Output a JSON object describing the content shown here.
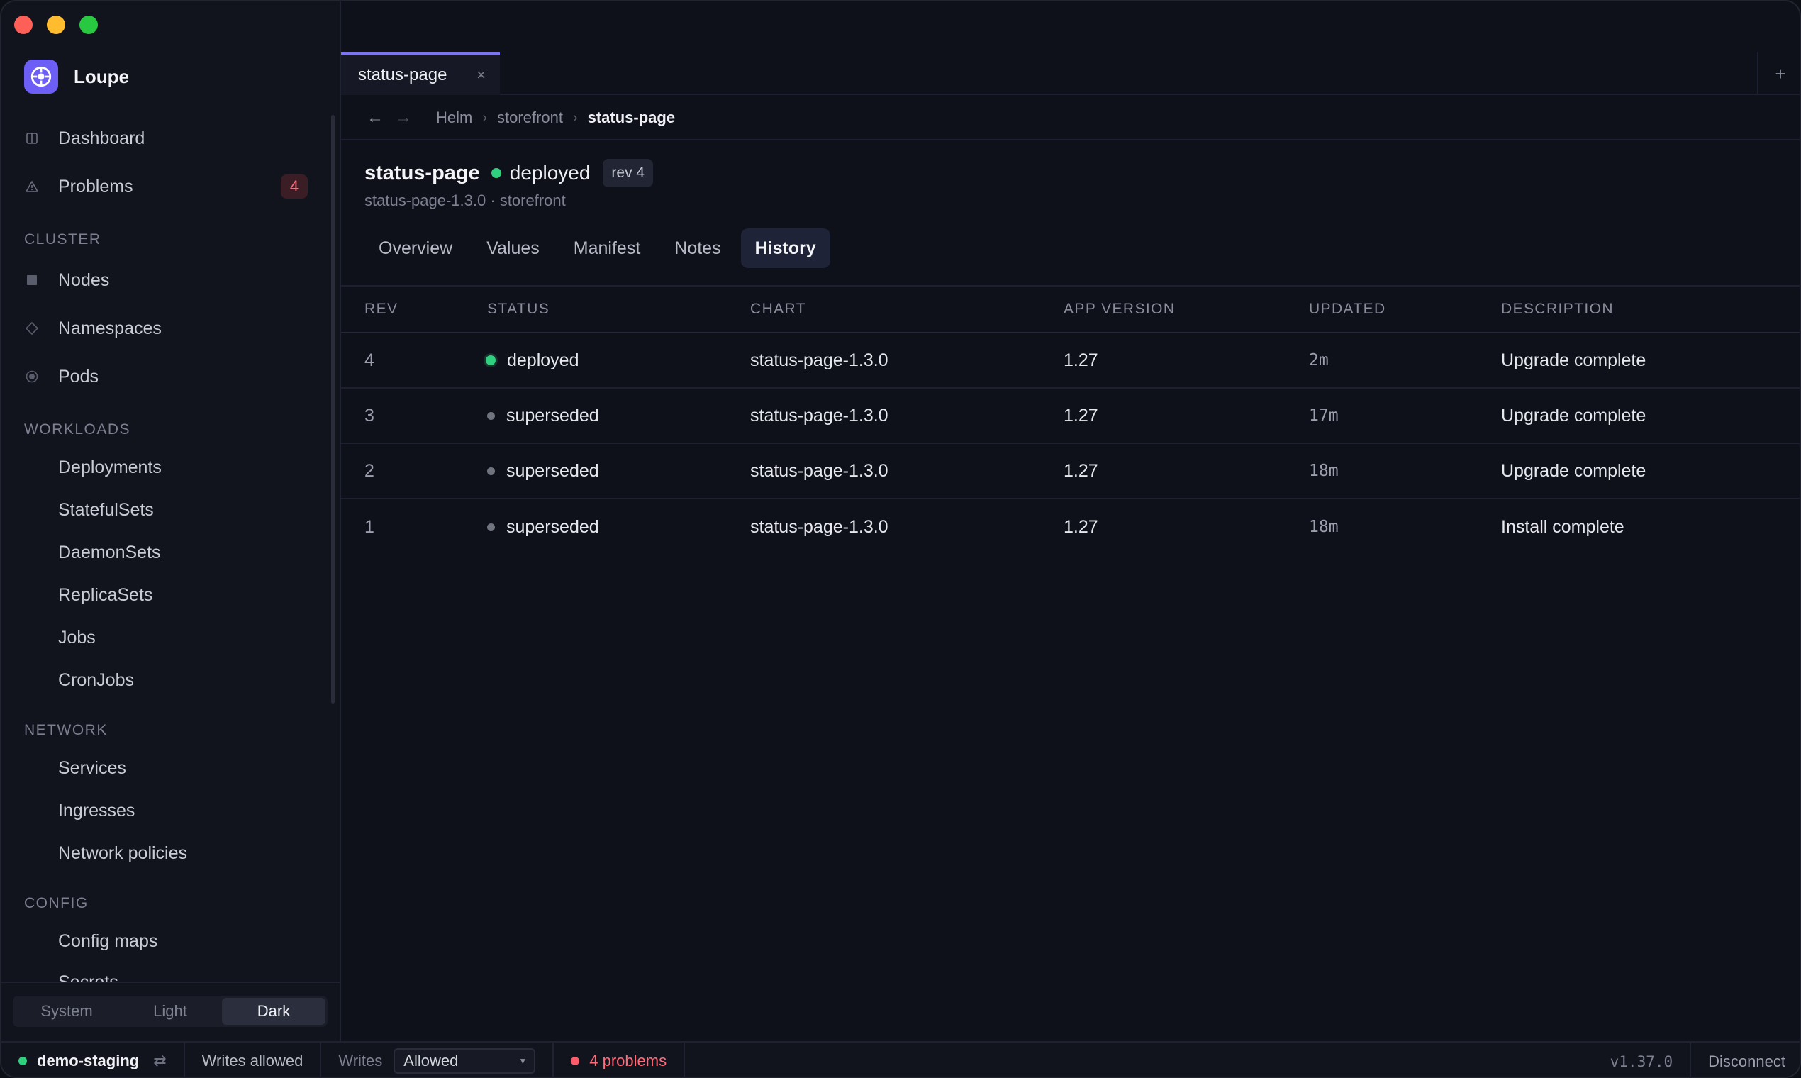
{
  "app": {
    "name": "Loupe"
  },
  "sidebar": {
    "top_items": [
      {
        "label": "Dashboard",
        "icon": "dashboard-icon"
      },
      {
        "label": "Problems",
        "icon": "warning-icon",
        "badge": "4"
      }
    ],
    "sections": [
      {
        "title": "CLUSTER",
        "items": [
          {
            "label": "Nodes"
          },
          {
            "label": "Namespaces"
          },
          {
            "label": "Pods"
          }
        ]
      },
      {
        "title": "WORKLOADS",
        "items": [
          {
            "label": "Deployments"
          },
          {
            "label": "StatefulSets"
          },
          {
            "label": "DaemonSets"
          },
          {
            "label": "ReplicaSets"
          },
          {
            "label": "Jobs"
          },
          {
            "label": "CronJobs"
          }
        ]
      },
      {
        "title": "NETWORK",
        "items": [
          {
            "label": "Services"
          },
          {
            "label": "Ingresses"
          },
          {
            "label": "Network policies"
          }
        ]
      },
      {
        "title": "CONFIG",
        "items": [
          {
            "label": "Config maps"
          },
          {
            "label": "Secrets"
          }
        ]
      }
    ],
    "theme": {
      "options": [
        "System",
        "Light",
        "Dark"
      ],
      "selected": "Dark"
    }
  },
  "tabs": [
    {
      "label": "status-page",
      "close": "×"
    }
  ],
  "new_tab": "+",
  "breadcrumb": {
    "back": "←",
    "forward": "→",
    "items": [
      "Helm",
      "storefront",
      "status-page"
    ]
  },
  "release": {
    "name": "status-page",
    "status": "deployed",
    "rev_badge": "rev 4",
    "subtitle": "status-page-1.3.0 · storefront"
  },
  "subtabs": [
    "Overview",
    "Values",
    "Manifest",
    "Notes",
    "History"
  ],
  "active_subtab": "History",
  "table": {
    "headers": [
      "REV",
      "STATUS",
      "CHART",
      "APP VERSION",
      "UPDATED",
      "DESCRIPTION"
    ],
    "rows": [
      {
        "rev": "4",
        "status": "deployed",
        "chart": "status-page-1.3.0",
        "app_version": "1.27",
        "updated": "2m",
        "description": "Upgrade complete"
      },
      {
        "rev": "3",
        "status": "superseded",
        "chart": "status-page-1.3.0",
        "app_version": "1.27",
        "updated": "17m",
        "description": "Upgrade complete"
      },
      {
        "rev": "2",
        "status": "superseded",
        "chart": "status-page-1.3.0",
        "app_version": "1.27",
        "updated": "18m",
        "description": "Upgrade complete"
      },
      {
        "rev": "1",
        "status": "superseded",
        "chart": "status-page-1.3.0",
        "app_version": "1.27",
        "updated": "18m",
        "description": "Install complete"
      }
    ]
  },
  "footer": {
    "context": "demo-staging",
    "swap_icon": "⇄",
    "writes_status": "Writes allowed",
    "writes_label": "Writes",
    "writes_value": "Allowed",
    "problems": "4 problems",
    "version": "v1.37.0",
    "disconnect": "Disconnect"
  },
  "colors": {
    "accent": "#7b76f0",
    "deployed": "#2fd17f",
    "superseded": "#70747f",
    "problem": "#ff6b7a"
  }
}
